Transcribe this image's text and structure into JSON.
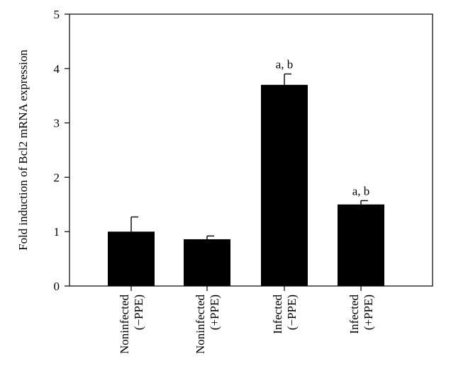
{
  "chart_data": {
    "type": "bar",
    "title": "",
    "xlabel": "",
    "ylabel": "Fold induction of Bcl2 mRNA expression",
    "ylim": [
      0,
      5
    ],
    "yticks": [
      0,
      1,
      2,
      3,
      4,
      5
    ],
    "grid": false,
    "categories": [
      {
        "line1": "Noninfected",
        "line2": "(−PPE)"
      },
      {
        "line1": "Noninfected",
        "line2": "(+PPE)"
      },
      {
        "line1": "Infected",
        "line2": "(−PPE)"
      },
      {
        "line1": "Infected",
        "line2": "(+PPE)"
      }
    ],
    "values": [
      1.0,
      0.86,
      3.7,
      1.5
    ],
    "errors": [
      0.27,
      0.06,
      0.2,
      0.07
    ],
    "annotations": [
      "",
      "",
      "a, b",
      "a, b"
    ],
    "bar_color": "#000000"
  }
}
